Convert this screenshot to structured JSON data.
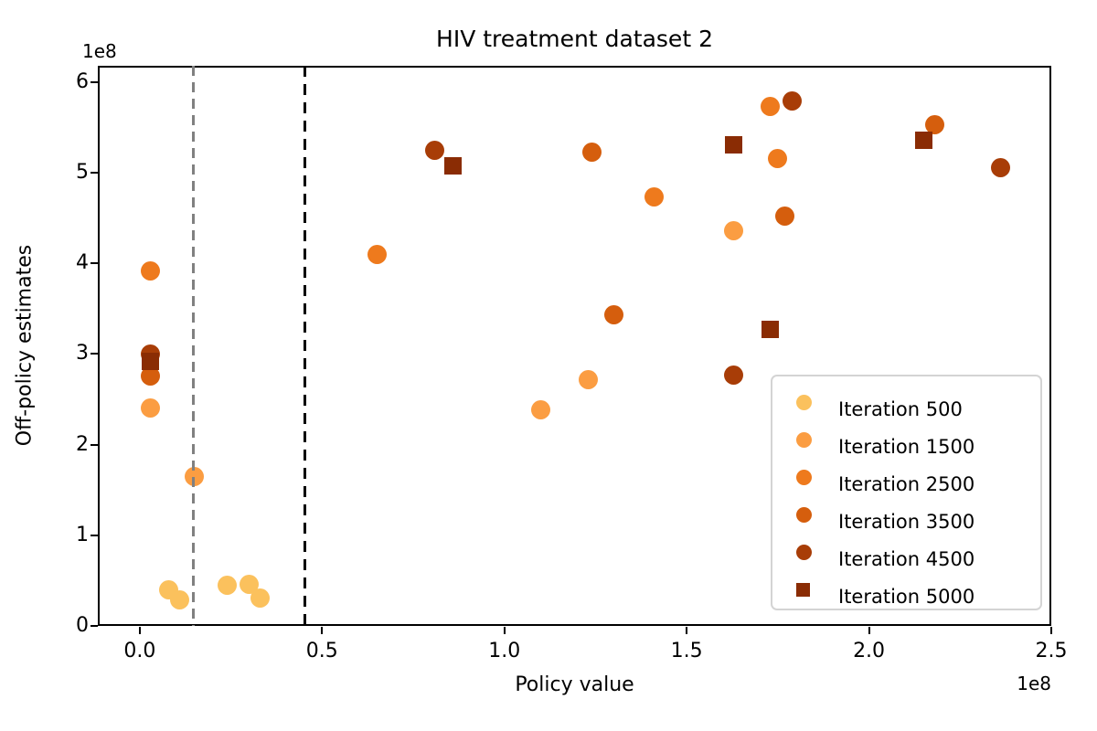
{
  "title": "HIV treatment dataset 2",
  "chart_data": {
    "type": "scatter",
    "title": "HIV treatment dataset 2",
    "xlabel": "Policy value",
    "ylabel": "Off-policy estimates",
    "x_offset_label": "1e8",
    "y_offset_label": "1e8",
    "axis_scale_note": "both axes in units of 1e8",
    "xlim": [
      -0.115,
      2.5
    ],
    "ylim": [
      0,
      6.18
    ],
    "x_tick_values": [
      0.0,
      0.5,
      1.0,
      1.5,
      2.0,
      2.5
    ],
    "x_tick_labels": [
      "0.0",
      "0.5",
      "1.0",
      "1.5",
      "2.0",
      "2.5"
    ],
    "y_tick_values": [
      0,
      1,
      2,
      3,
      4,
      5,
      6
    ],
    "y_tick_labels": [
      "0",
      "1",
      "2",
      "3",
      "4",
      "5",
      "6"
    ],
    "grid": false,
    "legend_position": "lower right",
    "series": [
      {
        "name": "Iteration 500",
        "marker": "circle",
        "color": "#fbc15d",
        "z": 3,
        "points": [
          [
            0.08,
            0.4
          ],
          [
            0.11,
            0.29
          ],
          [
            0.24,
            0.45
          ],
          [
            0.3,
            0.46
          ],
          [
            0.33,
            0.31
          ]
        ]
      },
      {
        "name": "Iteration 1500",
        "marker": "circle",
        "color": "#fb9d42",
        "z": 4,
        "points": [
          [
            0.03,
            2.4
          ],
          [
            0.15,
            1.65
          ],
          [
            1.1,
            2.38
          ],
          [
            1.23,
            2.72
          ],
          [
            1.63,
            4.36
          ]
        ]
      },
      {
        "name": "Iteration 2500",
        "marker": "circle",
        "color": "#ee7a1d",
        "z": 9,
        "points": [
          [
            0.03,
            3.92
          ],
          [
            0.65,
            4.1
          ],
          [
            1.41,
            4.73
          ],
          [
            1.73,
            5.73
          ],
          [
            1.75,
            5.16
          ]
        ]
      },
      {
        "name": "Iteration 3500",
        "marker": "circle",
        "color": "#d55e0d",
        "z": 5,
        "points": [
          [
            0.03,
            2.76
          ],
          [
            1.24,
            5.23
          ],
          [
            1.3,
            3.43
          ],
          [
            1.77,
            4.52
          ],
          [
            2.18,
            5.53
          ]
        ]
      },
      {
        "name": "Iteration 4500",
        "marker": "circle",
        "color": "#a83d07",
        "z": 6,
        "points": [
          [
            0.03,
            3.0
          ],
          [
            0.81,
            5.25
          ],
          [
            1.63,
            2.77
          ],
          [
            1.79,
            5.79
          ],
          [
            2.36,
            5.06
          ]
        ]
      },
      {
        "name": "Iteration 5000",
        "marker": "square",
        "color": "#8a2c04",
        "z": 8,
        "points": [
          [
            0.03,
            2.92
          ],
          [
            0.86,
            5.08
          ],
          [
            1.63,
            5.31
          ],
          [
            1.73,
            3.27
          ],
          [
            2.15,
            5.36
          ]
        ]
      }
    ],
    "vlines": [
      {
        "x": 0.147,
        "color": "#808080",
        "style": "dashed",
        "name": "gray-dashed-line"
      },
      {
        "x": 0.453,
        "color": "#000000",
        "style": "dashed",
        "name": "black-dashed-line"
      }
    ]
  }
}
